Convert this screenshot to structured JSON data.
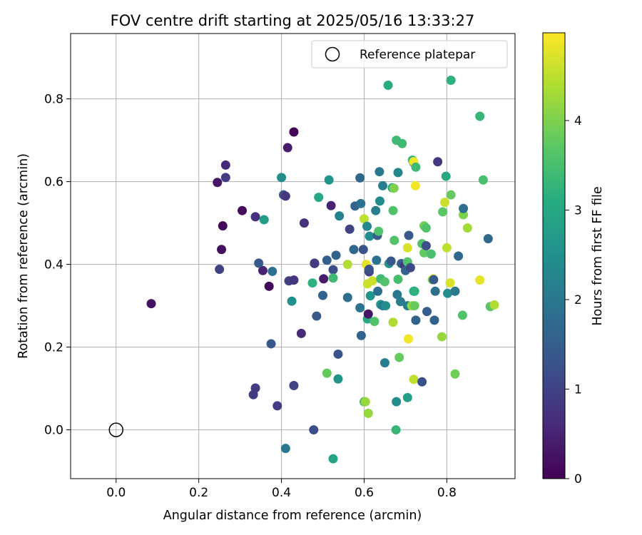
{
  "chart_data": {
    "type": "scatter",
    "title": "FOV centre drift starting at 2025/05/16 13:33:27",
    "xlabel": "Angular distance from reference (arcmin)",
    "ylabel": "Rotation from reference (arcmin)",
    "xlim": [
      -0.11,
      0.965
    ],
    "ylim": [
      -0.118,
      0.958
    ],
    "xticks": [
      0.0,
      0.2,
      0.4,
      0.6,
      0.8
    ],
    "xtick_labels": [
      "0.0",
      "0.2",
      "0.4",
      "0.6",
      "0.8"
    ],
    "yticks": [
      0.0,
      0.2,
      0.4,
      0.6,
      0.8
    ],
    "ytick_labels": [
      "0.0",
      "0.2",
      "0.4",
      "0.6",
      "0.8"
    ],
    "grid": true,
    "colormap": "viridis",
    "colorbar": {
      "label": "Hours from first FF file",
      "range": [
        0,
        4.98
      ],
      "ticks": [
        0,
        1,
        2,
        3,
        4
      ],
      "tick_labels": [
        "0",
        "1",
        "2",
        "3",
        "4"
      ]
    },
    "legend": {
      "position": "top-right",
      "entries": [
        "Reference platepar"
      ]
    },
    "reference_point": {
      "x": 0.0,
      "y": 0.0
    },
    "points": [
      [
        0.085,
        0.305,
        0.25
      ],
      [
        0.245,
        0.598,
        0.3
      ],
      [
        0.258,
        0.493,
        0.1
      ],
      [
        0.255,
        0.436,
        0.2
      ],
      [
        0.305,
        0.53,
        0.15
      ],
      [
        0.265,
        0.64,
        0.6
      ],
      [
        0.265,
        0.61,
        0.9
      ],
      [
        0.25,
        0.388,
        1.0
      ],
      [
        0.337,
        0.515,
        0.7
      ],
      [
        0.355,
        0.385,
        0.5
      ],
      [
        0.37,
        0.347,
        0.1
      ],
      [
        0.345,
        0.403,
        1.4
      ],
      [
        0.358,
        0.508,
        2.8
      ],
      [
        0.378,
        0.383,
        1.8
      ],
      [
        0.4,
        0.61,
        2.5
      ],
      [
        0.405,
        0.568,
        1.3
      ],
      [
        0.41,
        0.565,
        0.8
      ],
      [
        0.415,
        0.682,
        0.4
      ],
      [
        0.43,
        0.72,
        0.05
      ],
      [
        0.418,
        0.36,
        1.0
      ],
      [
        0.43,
        0.362,
        0.8
      ],
      [
        0.425,
        0.311,
        2.5
      ],
      [
        0.455,
        0.5,
        0.7
      ],
      [
        0.448,
        0.233,
        0.6
      ],
      [
        0.375,
        0.208,
        1.4
      ],
      [
        0.337,
        0.101,
        0.9
      ],
      [
        0.332,
        0.085,
        0.9
      ],
      [
        0.39,
        0.058,
        0.9
      ],
      [
        0.43,
        0.107,
        1.0
      ],
      [
        0.41,
        -0.045,
        2.0
      ],
      [
        0.478,
        0.0,
        1.2
      ],
      [
        0.48,
        0.403,
        1.1
      ],
      [
        0.48,
        0.402,
        0.9
      ],
      [
        0.485,
        0.275,
        1.4
      ],
      [
        0.475,
        0.355,
        3.2
      ],
      [
        0.49,
        0.562,
        3.0
      ],
      [
        0.5,
        0.325,
        1.6
      ],
      [
        0.502,
        0.365,
        0.4
      ],
      [
        0.51,
        0.41,
        1.5
      ],
      [
        0.515,
        0.604,
        2.6
      ],
      [
        0.52,
        0.542,
        0.5
      ],
      [
        0.525,
        0.387,
        1.2
      ],
      [
        0.525,
        0.367,
        3.4
      ],
      [
        0.532,
        0.422,
        1.6
      ],
      [
        0.54,
        0.517,
        2.2
      ],
      [
        0.537,
        0.183,
        1.3
      ],
      [
        0.537,
        0.123,
        2.6
      ],
      [
        0.51,
        0.137,
        3.8
      ],
      [
        0.525,
        -0.07,
        2.9
      ],
      [
        0.56,
        0.4,
        4.4
      ],
      [
        0.56,
        0.32,
        1.8
      ],
      [
        0.565,
        0.485,
        1.0
      ],
      [
        0.575,
        0.436,
        1.7
      ],
      [
        0.578,
        0.541,
        1.6
      ],
      [
        0.59,
        0.609,
        1.7
      ],
      [
        0.59,
        0.295,
        1.9
      ],
      [
        0.592,
        0.547,
        1.9
      ],
      [
        0.593,
        0.228,
        1.6
      ],
      [
        0.598,
        0.436,
        1.3
      ],
      [
        0.6,
        0.51,
        4.5
      ],
      [
        0.6,
        0.068,
        3.4
      ],
      [
        0.603,
        0.068,
        4.2
      ],
      [
        0.605,
        0.4,
        4.8
      ],
      [
        0.607,
        0.492,
        2.3
      ],
      [
        0.608,
        0.353,
        4.6
      ],
      [
        0.61,
        0.04,
        4.2
      ],
      [
        0.608,
        0.268,
        3.0
      ],
      [
        0.61,
        0.28,
        0.3
      ],
      [
        0.612,
        0.382,
        1.0
      ],
      [
        0.612,
        0.388,
        1.3
      ],
      [
        0.613,
        0.468,
        2.4
      ],
      [
        0.615,
        0.324,
        2.6
      ],
      [
        0.62,
        0.36,
        4.6
      ],
      [
        0.625,
        0.262,
        3.6
      ],
      [
        0.628,
        0.53,
        2.1
      ],
      [
        0.63,
        0.41,
        1.9
      ],
      [
        0.632,
        0.47,
        1.5
      ],
      [
        0.633,
        0.335,
        1.8
      ],
      [
        0.635,
        0.48,
        3.6
      ],
      [
        0.637,
        0.624,
        2.0
      ],
      [
        0.638,
        0.553,
        2.4
      ],
      [
        0.64,
        0.303,
        2.7
      ],
      [
        0.64,
        0.365,
        3.4
      ],
      [
        0.645,
        0.59,
        2.1
      ],
      [
        0.645,
        0.3,
        2.0
      ],
      [
        0.65,
        0.162,
        2.1
      ],
      [
        0.65,
        0.358,
        3.6
      ],
      [
        0.652,
        0.3,
        2.4
      ],
      [
        0.658,
        0.833,
        3.1
      ],
      [
        0.66,
        0.402,
        2.6
      ],
      [
        0.665,
        0.408,
        1.4
      ],
      [
        0.668,
        0.585,
        3.0
      ],
      [
        0.67,
        0.26,
        4.4
      ],
      [
        0.67,
        0.53,
        3.6
      ],
      [
        0.672,
        0.584,
        4.0
      ],
      [
        0.673,
        0.458,
        3.6
      ],
      [
        0.677,
        0.0,
        3.3
      ],
      [
        0.678,
        0.068,
        2.4
      ],
      [
        0.678,
        0.7,
        3.4
      ],
      [
        0.68,
        0.327,
        2.0
      ],
      [
        0.682,
        0.364,
        3.5
      ],
      [
        0.682,
        0.622,
        2.3
      ],
      [
        0.685,
        0.175,
        3.8
      ],
      [
        0.688,
        0.31,
        2.1
      ],
      [
        0.69,
        0.402,
        1.5
      ],
      [
        0.692,
        0.692,
        3.4
      ],
      [
        0.698,
        0.397,
        0.8
      ],
      [
        0.7,
        0.385,
        1.6
      ],
      [
        0.705,
        0.44,
        4.7
      ],
      [
        0.705,
        0.3,
        2.1
      ],
      [
        0.705,
        0.078,
        2.8
      ],
      [
        0.705,
        0.406,
        3.6
      ],
      [
        0.707,
        0.22,
        4.9
      ],
      [
        0.708,
        0.47,
        1.4
      ],
      [
        0.712,
        0.392,
        1.1
      ],
      [
        0.715,
        0.3,
        4.2
      ],
      [
        0.717,
        0.652,
        3.3
      ],
      [
        0.72,
        0.646,
        1.6
      ],
      [
        0.72,
        0.335,
        3.0
      ],
      [
        0.72,
        0.648,
        4.9
      ],
      [
        0.72,
        0.122,
        4.5
      ],
      [
        0.722,
        0.335,
        3.2
      ],
      [
        0.722,
        0.3,
        3.8
      ],
      [
        0.724,
        0.59,
        4.9
      ],
      [
        0.725,
        0.635,
        3.4
      ],
      [
        0.725,
        0.265,
        1.6
      ],
      [
        0.74,
        0.45,
        3.6
      ],
      [
        0.74,
        0.116,
        1.2
      ],
      [
        0.745,
        0.493,
        3.9
      ],
      [
        0.745,
        0.428,
        3.8
      ],
      [
        0.75,
        0.445,
        1.2
      ],
      [
        0.75,
        0.488,
        3.6
      ],
      [
        0.752,
        0.286,
        1.5
      ],
      [
        0.762,
        0.425,
        3.5
      ],
      [
        0.765,
        0.363,
        4.0
      ],
      [
        0.767,
        0.365,
        4.7
      ],
      [
        0.768,
        0.363,
        1.4
      ],
      [
        0.77,
        0.265,
        1.6
      ],
      [
        0.772,
        0.335,
        1.8
      ],
      [
        0.778,
        0.648,
        0.8
      ],
      [
        0.788,
        0.225,
        4.2
      ],
      [
        0.79,
        0.527,
        3.7
      ],
      [
        0.795,
        0.55,
        4.6
      ],
      [
        0.798,
        0.613,
        3.0
      ],
      [
        0.8,
        0.44,
        4.5
      ],
      [
        0.802,
        0.33,
        2.4
      ],
      [
        0.808,
        0.355,
        4.7
      ],
      [
        0.81,
        0.845,
        3.2
      ],
      [
        0.81,
        0.568,
        3.8
      ],
      [
        0.82,
        0.135,
        3.9
      ],
      [
        0.82,
        0.335,
        2.0
      ],
      [
        0.828,
        0.42,
        1.7
      ],
      [
        0.838,
        0.277,
        3.6
      ],
      [
        0.84,
        0.52,
        4.0
      ],
      [
        0.84,
        0.535,
        1.8
      ],
      [
        0.85,
        0.488,
        4.3
      ],
      [
        0.88,
        0.758,
        3.3
      ],
      [
        0.88,
        0.362,
        4.8
      ],
      [
        0.888,
        0.604,
        3.5
      ],
      [
        0.9,
        0.462,
        1.7
      ],
      [
        0.905,
        0.298,
        3.7
      ],
      [
        0.915,
        0.302,
        4.4
      ]
    ]
  }
}
